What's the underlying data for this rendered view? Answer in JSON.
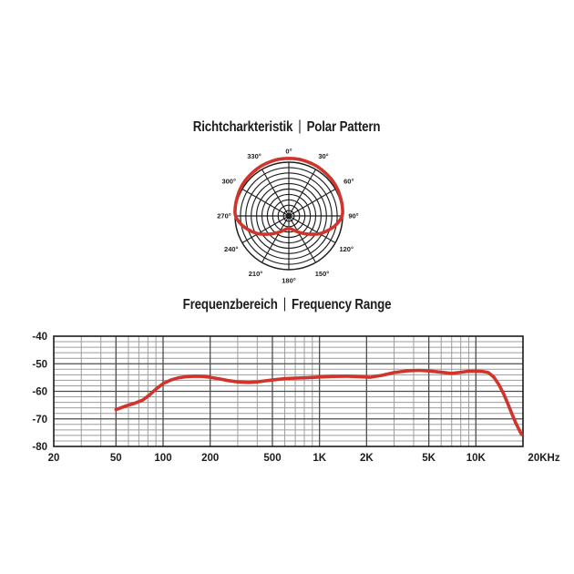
{
  "ui": {
    "polar_title": {
      "de": "Richtcharkteristik",
      "separator": "|",
      "en": "Polar Pattern"
    },
    "freq_title": {
      "de": "Frequenzbereich",
      "separator": "|",
      "en": "Frequency Range"
    }
  },
  "colors": {
    "curve_red": "#d1342b",
    "polar_grid": "#1e1e1e",
    "grid_minor": "#9c9c9c",
    "grid_major": "#4d4d4d",
    "axis_border": "#1b1b1b",
    "text": "#1d1d1d"
  },
  "chart_data": [
    {
      "type": "polar",
      "name": "polar-pattern",
      "title": "Richtcharkteristik | Polar Pattern",
      "rings": 10,
      "r_axis_max": 1.0,
      "angle_ticks_deg": [
        0,
        30,
        60,
        90,
        120,
        150,
        180,
        210,
        240,
        270,
        300,
        330
      ],
      "angle_tick_labels": [
        "0°",
        "30°",
        "60°",
        "90°",
        "120°",
        "150°",
        "180°",
        "210°",
        "240°",
        "270°",
        "300°",
        "330°"
      ],
      "series": [
        {
          "name": "cardioid-response",
          "color": "#d1342b",
          "symmetric": true,
          "theta_deg": [
            0,
            10,
            20,
            30,
            40,
            50,
            60,
            70,
            80,
            90,
            100,
            110,
            120,
            130,
            140,
            150,
            160,
            170,
            180
          ],
          "r": [
            1.07,
            1.07,
            1.065,
            1.06,
            1.05,
            1.045,
            1.035,
            1.02,
            1.01,
            0.99,
            0.9,
            0.78,
            0.66,
            0.53,
            0.425,
            0.345,
            0.285,
            0.245,
            0.225
          ]
        }
      ]
    },
    {
      "type": "line",
      "name": "frequency-response",
      "title": "Frequenzbereich | Frequency Range",
      "xscale": "log",
      "xlim": [
        20,
        20000
      ],
      "ylim": [
        -80,
        -40
      ],
      "grid": true,
      "x_tick_values": [
        20,
        50,
        100,
        200,
        500,
        1000,
        2000,
        5000,
        10000,
        20000
      ],
      "x_tick_labels": [
        "20",
        "50",
        "100",
        "200",
        "500",
        "1K",
        "2K",
        "5K",
        "10K",
        "20KHz"
      ],
      "x_minor_ticks": [
        30,
        40,
        60,
        70,
        80,
        90,
        300,
        400,
        600,
        700,
        800,
        900,
        3000,
        4000,
        6000,
        7000,
        8000,
        9000
      ],
      "y_tick_values": [
        -40,
        -50,
        -60,
        -70,
        -80
      ],
      "y_tick_labels": [
        "-40",
        "-50",
        "-60",
        "-70",
        "-80"
      ],
      "y_minor_step": 2,
      "series": [
        {
          "name": "frequency-response-curve",
          "color": "#d1342b",
          "x": [
            50,
            58,
            66,
            74,
            82,
            90,
            100,
            112,
            125,
            140,
            160,
            180,
            200,
            230,
            260,
            300,
            350,
            400,
            450,
            500,
            600,
            700,
            850,
            1000,
            1200,
            1500,
            1800,
            2100,
            2500,
            3000,
            3600,
            4300,
            5000,
            6000,
            7000,
            8000,
            9000,
            10000,
            11000,
            12000,
            13000,
            14000,
            15000,
            16000,
            17000,
            18000,
            19000,
            19600
          ],
          "y": [
            -66.6,
            -65.3,
            -64.3,
            -63.2,
            -61.3,
            -59.2,
            -57.2,
            -55.9,
            -55.1,
            -54.7,
            -54.5,
            -54.6,
            -54.9,
            -55.5,
            -56.1,
            -56.6,
            -56.8,
            -56.6,
            -56.2,
            -55.9,
            -55.4,
            -55.2,
            -55.0,
            -54.8,
            -54.6,
            -54.5,
            -54.7,
            -54.9,
            -54.2,
            -53.2,
            -52.6,
            -52.4,
            -52.6,
            -53.1,
            -53.5,
            -53.1,
            -52.7,
            -52.7,
            -52.8,
            -53.2,
            -54.8,
            -57.5,
            -60.8,
            -64.5,
            -68.2,
            -71.5,
            -74.2,
            -75.6
          ]
        }
      ]
    }
  ]
}
